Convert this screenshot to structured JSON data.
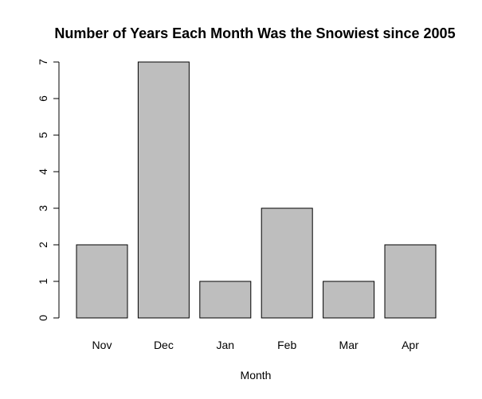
{
  "chart_data": {
    "type": "bar",
    "title": "Number of Years Each Month Was the Snowiest since 2005",
    "xlabel": "Month",
    "ylabel": "",
    "categories": [
      "Nov",
      "Dec",
      "Jan",
      "Feb",
      "Mar",
      "Apr"
    ],
    "values": [
      2,
      7,
      1,
      3,
      1,
      2
    ],
    "ylim": [
      0,
      7
    ],
    "yticks": [
      0,
      1,
      2,
      3,
      4,
      5,
      6,
      7
    ],
    "bar_color": "#bebebe",
    "grid": false,
    "legend": "none"
  }
}
